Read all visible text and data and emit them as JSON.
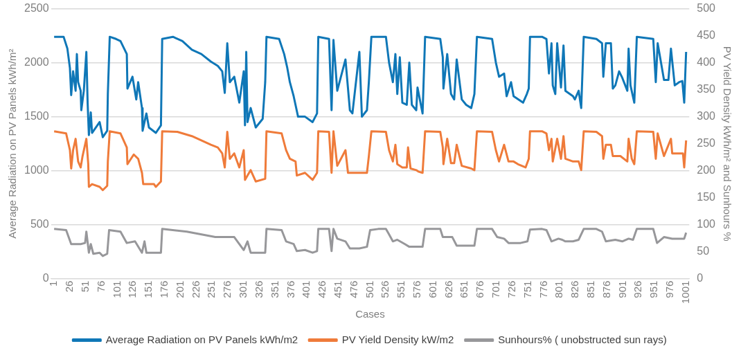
{
  "chart_data": {
    "type": "line",
    "xlabel": "Cases",
    "ylabel": "Average Radiation on PV Panels kWh/m²",
    "y2label": "PV Yield Density kWh/m² and Sunhours %",
    "xlim": [
      -4,
      1006
    ],
    "xticks": [
      1,
      26,
      51,
      76,
      101,
      126,
      151,
      176,
      201,
      226,
      251,
      276,
      301,
      326,
      351,
      376,
      401,
      426,
      451,
      476,
      501,
      526,
      551,
      576,
      601,
      626,
      651,
      676,
      701,
      726,
      751,
      776,
      801,
      826,
      851,
      876,
      901,
      926,
      951,
      976,
      1001
    ],
    "ylim": [
      0,
      2500
    ],
    "yticks": [
      0,
      500,
      1000,
      1500,
      2000,
      2500
    ],
    "y2lim": [
      0,
      500
    ],
    "y2ticks": [
      0,
      50,
      100,
      150,
      200,
      250,
      300,
      350,
      400,
      450,
      500
    ],
    "grid": "y",
    "legend": "bottom",
    "series": [
      {
        "name": "Average Radiation on PV Panels kWh/m2",
        "color": "#0f77b7",
        "x": [
          1,
          16,
          22,
          26,
          28,
          31,
          35,
          37,
          39,
          43,
          44,
          48,
          52,
          54,
          56,
          59,
          61,
          73,
          78,
          85,
          86,
          89,
          99,
          106,
          116,
          117,
          125,
          131,
          134,
          140,
          141,
          147,
          151,
          162,
          170,
          172,
          189,
          204,
          219,
          234,
          249,
          260,
          267,
          271,
          275,
          279,
          286,
          294,
          301,
          303,
          305,
          307,
          312,
          320,
          331,
          335,
          337,
          357,
          365,
          370,
          374,
          380,
          387,
          398,
          410,
          417,
          419,
          436,
          440,
          443,
          449,
          462,
          469,
          473,
          484,
          488,
          496,
          499,
          503,
          526,
          531,
          537,
          541,
          544,
          548,
          552,
          559,
          563,
          567,
          574,
          576,
          584,
          588,
          612,
          616,
          617,
          623,
          629,
          634,
          638,
          646,
          653,
          661,
          666,
          670,
          694,
          700,
          705,
          713,
          717,
          724,
          728,
          743,
          749,
          752,
          754,
          773,
          780,
          784,
          788,
          790,
          794,
          797,
          803,
          807,
          810,
          822,
          825,
          831,
          835,
          839,
          859,
          868,
          870,
          874,
          882,
          885,
          889,
          895,
          900,
          908,
          910,
          913,
          919,
          923,
          949,
          953,
          956,
          966,
          973,
          977,
          983,
          990,
          995,
          998,
          1001
        ],
        "values": [
          2240,
          2240,
          2130,
          1950,
          1700,
          1920,
          1740,
          2080,
          1820,
          1740,
          1560,
          1740,
          2100,
          1630,
          1330,
          1540,
          1350,
          1450,
          1310,
          1370,
          1710,
          2240,
          2220,
          2200,
          2080,
          1760,
          1870,
          1660,
          1820,
          1580,
          1370,
          1530,
          1400,
          1350,
          1420,
          2220,
          2240,
          2200,
          2120,
          2080,
          2010,
          1970,
          1920,
          1720,
          2180,
          1820,
          1870,
          1630,
          1920,
          1420,
          2100,
          1450,
          1580,
          1400,
          1480,
          1820,
          2240,
          2220,
          2080,
          1950,
          1820,
          1690,
          1500,
          1500,
          1450,
          1530,
          2240,
          2220,
          1560,
          2210,
          1740,
          2030,
          1560,
          1530,
          2100,
          1500,
          1560,
          1820,
          2240,
          2240,
          2000,
          1820,
          2080,
          1710,
          2050,
          1630,
          1610,
          2000,
          1610,
          1560,
          1770,
          1530,
          2240,
          2220,
          2050,
          1760,
          2080,
          1710,
          1660,
          2030,
          1660,
          1610,
          1580,
          1710,
          2240,
          2220,
          2000,
          1870,
          1900,
          1690,
          1820,
          1690,
          1630,
          1710,
          1760,
          2240,
          2240,
          2220,
          1900,
          2180,
          1790,
          1710,
          2180,
          1770,
          2160,
          1740,
          1690,
          1660,
          1740,
          1580,
          2240,
          2220,
          2180,
          1870,
          2180,
          2180,
          1760,
          1790,
          1920,
          1860,
          1740,
          2130,
          1790,
          1630,
          2240,
          2220,
          1820,
          2180,
          1840,
          1840,
          2130,
          1790,
          1820,
          1830,
          1630,
          2100
        ]
      },
      {
        "name": "PV Yield Density kW/m2",
        "color": "#ef7b3a",
        "axis": "y2",
        "x": [
          1,
          20,
          26,
          28,
          31,
          35,
          39,
          43,
          46,
          52,
          55,
          56,
          61,
          73,
          78,
          85,
          86,
          89,
          106,
          116,
          117,
          127,
          134,
          140,
          142,
          159,
          162,
          170,
          172,
          196,
          219,
          249,
          260,
          267,
          271,
          275,
          279,
          286,
          294,
          301,
          303,
          312,
          320,
          335,
          337,
          361,
          368,
          374,
          383,
          385,
          398,
          410,
          417,
          419,
          436,
          440,
          443,
          449,
          462,
          466,
          484,
          496,
          499,
          503,
          526,
          531,
          537,
          541,
          544,
          552,
          559,
          561,
          565,
          574,
          578,
          584,
          588,
          612,
          616,
          617,
          623,
          629,
          634,
          638,
          646,
          661,
          666,
          670,
          694,
          700,
          705,
          713,
          720,
          728,
          735,
          747,
          752,
          754,
          773,
          780,
          784,
          788,
          790,
          797,
          803,
          807,
          810,
          822,
          831,
          835,
          839,
          859,
          868,
          870,
          874,
          882,
          885,
          897,
          908,
          910,
          915,
          919,
          923,
          949,
          953,
          956,
          966,
          977,
          979,
          996,
          998,
          1001
        ],
        "values": [
          273,
          269,
          238,
          204,
          238,
          259,
          217,
          206,
          227,
          259,
          212,
          170,
          175,
          170,
          164,
          172,
          217,
          273,
          269,
          243,
          212,
          230,
          222,
          196,
          175,
          175,
          170,
          180,
          273,
          272,
          264,
          248,
          243,
          232,
          206,
          272,
          222,
          232,
          206,
          238,
          183,
          201,
          180,
          185,
          273,
          269,
          238,
          222,
          217,
          191,
          196,
          183,
          196,
          273,
          272,
          196,
          273,
          209,
          238,
          196,
          196,
          196,
          227,
          273,
          272,
          238,
          217,
          248,
          212,
          206,
          206,
          243,
          204,
          201,
          198,
          196,
          273,
          272,
          243,
          212,
          259,
          214,
          214,
          248,
          209,
          204,
          201,
          273,
          272,
          238,
          217,
          248,
          217,
          217,
          212,
          206,
          222,
          273,
          273,
          269,
          238,
          259,
          217,
          259,
          222,
          264,
          222,
          217,
          217,
          201,
          273,
          272,
          264,
          222,
          248,
          248,
          227,
          227,
          217,
          259,
          222,
          212,
          273,
          272,
          222,
          269,
          227,
          259,
          232,
          232,
          206,
          256
        ]
      },
      {
        "name": "Sunhours% ( unobstructed sun rays)",
        "color": "#97979a",
        "axis": "y2",
        "x": [
          1,
          20,
          28,
          43,
          50,
          52,
          56,
          59,
          63,
          73,
          78,
          85,
          88,
          106,
          116,
          129,
          140,
          144,
          147,
          162,
          170,
          172,
          211,
          256,
          267,
          286,
          301,
          307,
          312,
          331,
          335,
          337,
          361,
          368,
          380,
          385,
          398,
          410,
          417,
          419,
          436,
          440,
          443,
          449,
          462,
          469,
          484,
          496,
          501,
          514,
          526,
          531,
          537,
          544,
          556,
          563,
          578,
          584,
          588,
          612,
          616,
          631,
          638,
          661,
          666,
          670,
          694,
          702,
          713,
          720,
          739,
          750,
          754,
          773,
          780,
          788,
          799,
          805,
          810,
          822,
          831,
          839,
          859,
          868,
          874,
          889,
          900,
          910,
          917,
          923,
          949,
          955,
          966,
          979,
          998,
          1001
        ],
        "values": [
          92,
          90,
          64,
          64,
          66,
          87,
          48,
          64,
          46,
          48,
          42,
          46,
          90,
          87,
          66,
          69,
          48,
          69,
          48,
          48,
          48,
          92,
          87,
          77,
          77,
          77,
          53,
          69,
          48,
          48,
          48,
          92,
          90,
          69,
          64,
          51,
          53,
          48,
          51,
          92,
          92,
          51,
          92,
          74,
          69,
          56,
          56,
          59,
          90,
          92,
          92,
          82,
          69,
          72,
          64,
          59,
          59,
          59,
          92,
          92,
          77,
          77,
          61,
          61,
          61,
          92,
          92,
          77,
          74,
          66,
          66,
          69,
          91,
          92,
          90,
          69,
          74,
          72,
          69,
          69,
          72,
          92,
          92,
          87,
          69,
          72,
          69,
          74,
          72,
          92,
          92,
          66,
          77,
          74,
          74,
          85
        ]
      }
    ]
  }
}
